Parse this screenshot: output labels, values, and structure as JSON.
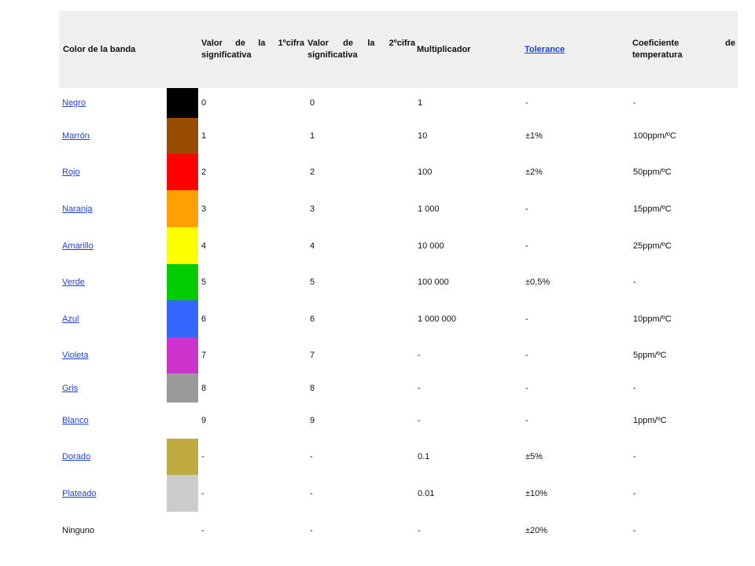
{
  "headers": {
    "color": "Color de la banda",
    "first_digit_l1": "Valor de la 1ºcifra",
    "first_digit_l2": "significativa",
    "second_digit_l1": "Valor de la 2ºcifra",
    "second_digit_l2": "significativa",
    "multiplier": "Multiplicador",
    "tolerance": "Tolerance",
    "coefficient_l1": "Coeficiente de",
    "coefficient_l2": "temperatura"
  },
  "rows": [
    {
      "name": "Negro",
      "link": true,
      "swatch": "#000000",
      "d1": "0",
      "d2": "0",
      "mult": "1",
      "tol": "-",
      "coef": "-"
    },
    {
      "name": "Marrón",
      "link": true,
      "swatch": "#984c00",
      "d1": "1",
      "d2": "1",
      "mult": "10",
      "tol": "±1%",
      "coef": "100ppm/ºC"
    },
    {
      "name": "Rojo",
      "link": true,
      "swatch": "#ff0000",
      "d1": "2",
      "d2": "2",
      "mult": "100",
      "tol": "±2%",
      "coef": "50ppm/ºC"
    },
    {
      "name": "Naranja",
      "link": true,
      "swatch": "#ffa000",
      "d1": "3",
      "d2": "3",
      "mult": "1 000",
      "tol": "-",
      "coef": "15ppm/ºC"
    },
    {
      "name": "Amarillo",
      "link": true,
      "swatch": "#ffff00",
      "d1": "4",
      "d2": "4",
      "mult": "10 000",
      "tol": "-",
      "coef": "25ppm/ºC"
    },
    {
      "name": "Verde",
      "link": true,
      "swatch": "#00cc00",
      "d1": "5",
      "d2": "5",
      "mult": "100 000",
      "tol": "±0,5%",
      "coef": "-"
    },
    {
      "name": "Azul",
      "link": true,
      "swatch": "#3366ff",
      "d1": "6",
      "d2": "6",
      "mult": "1 000 000",
      "tol": "-",
      "coef": "10ppm/ºC"
    },
    {
      "name": "Violeta",
      "link": true,
      "swatch": "#cc33cc",
      "d1": "7",
      "d2": "7",
      "mult": "-",
      "tol": "-",
      "coef": "5ppm/ºC"
    },
    {
      "name": "Gris",
      "link": true,
      "swatch": "#999999",
      "d1": "8",
      "d2": "8",
      "mult": "-",
      "tol": "-",
      "coef": "-"
    },
    {
      "name": "Blanco",
      "link": true,
      "swatch": "#ffffff",
      "d1": "9",
      "d2": "9",
      "mult": "-",
      "tol": "-",
      "coef": "1ppm/ºC"
    },
    {
      "name": "Dorado",
      "link": true,
      "swatch": "#c0aa40",
      "d1": "-",
      "d2": "-",
      "mult": "0.1",
      "tol": "±5%",
      "coef": "-"
    },
    {
      "name": "Plateado",
      "link": true,
      "swatch": "#cccccc",
      "d1": "-",
      "d2": "-",
      "mult": "0.01",
      "tol": "±10%",
      "coef": "-"
    },
    {
      "name": "Ninguno",
      "link": false,
      "swatch": "",
      "d1": "-",
      "d2": "-",
      "mult": "-",
      "tol": "±20%",
      "coef": "-"
    }
  ]
}
